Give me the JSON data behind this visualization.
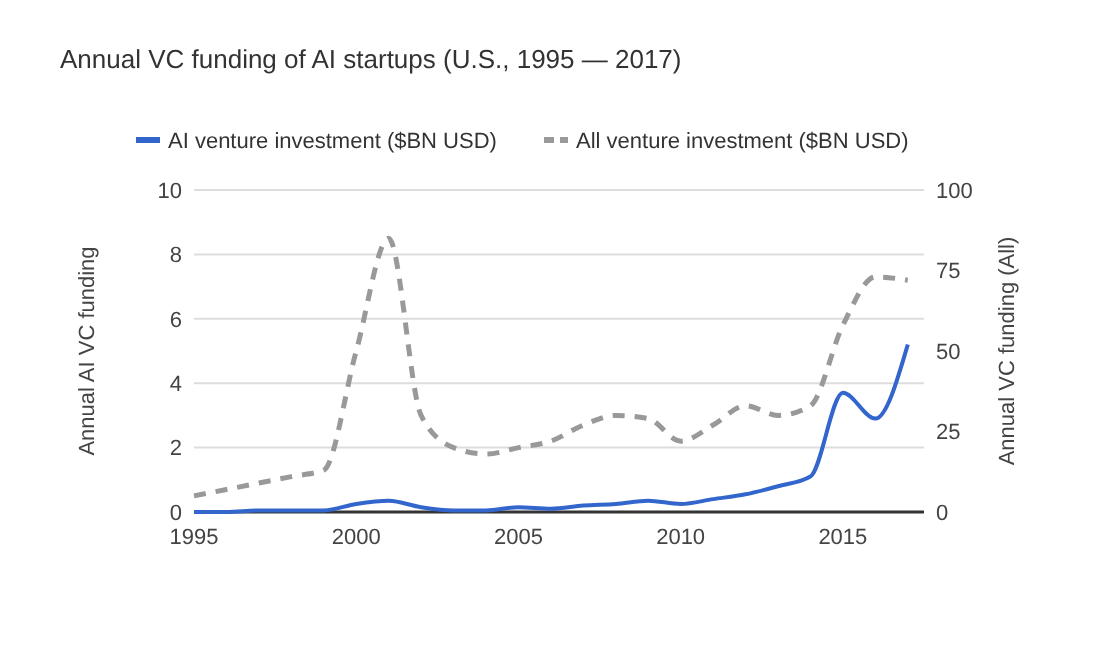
{
  "chart_data": {
    "type": "line",
    "title": "Annual VC funding of AI startups (U.S., 1995 — 2017)",
    "ylabel": "Annual AI VC funding",
    "y2label": "Annual VC funding (All)",
    "x": [
      1995,
      1996,
      1997,
      1998,
      1999,
      2000,
      2001,
      2002,
      2003,
      2004,
      2005,
      2006,
      2007,
      2008,
      2009,
      2010,
      2011,
      2012,
      2013,
      2014,
      2015,
      2016,
      2017
    ],
    "series": [
      {
        "name": "AI venture investment ($BN USD)",
        "color": "#3366cc",
        "line_style": "solid",
        "values": [
          0,
          0,
          0.05,
          0.05,
          0.05,
          0.25,
          0.35,
          0.15,
          0.05,
          0.05,
          0.15,
          0.1,
          0.2,
          0.25,
          0.35,
          0.25,
          0.4,
          0.55,
          0.8,
          1.1,
          3.7,
          2.9,
          5.2
        ]
      },
      {
        "name": "All venture investment ($BN USD)",
        "color": "#999999",
        "line_style": "dashed",
        "axis": "y2",
        "values": [
          5,
          7,
          9,
          11,
          13,
          50,
          85,
          30,
          20,
          18,
          20,
          22,
          27,
          30,
          29,
          22,
          27,
          33,
          30,
          33,
          58,
          73,
          72
        ]
      }
    ],
    "xlim": [
      1995,
      2017.5
    ],
    "xticks": [
      1995,
      2000,
      2005,
      2010,
      2015
    ],
    "ylim": [
      0,
      10
    ],
    "yticks": [
      0,
      2,
      4,
      6,
      8,
      10
    ],
    "y2lim": [
      0,
      100
    ],
    "y2ticks": [
      0,
      25,
      50,
      75,
      100
    ],
    "grid": "y",
    "legend": "top",
    "marker": "none"
  }
}
